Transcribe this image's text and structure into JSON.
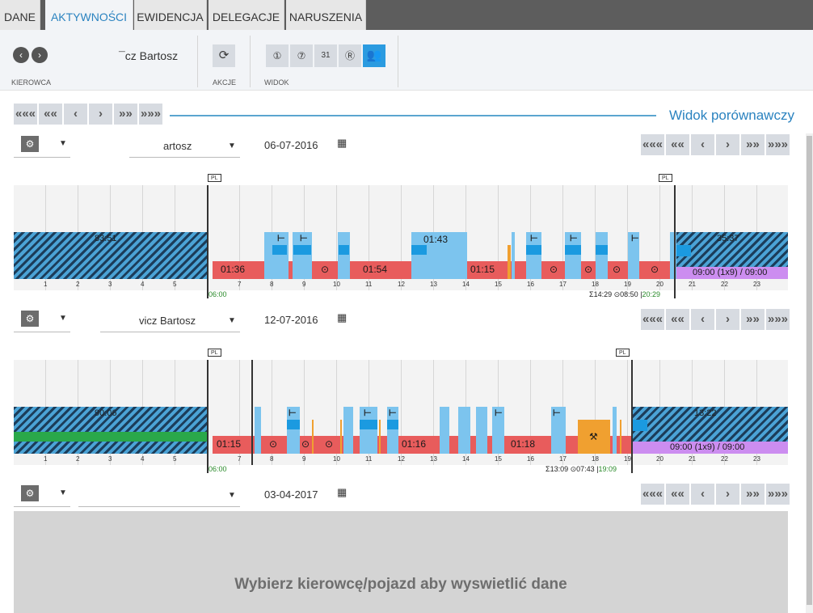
{
  "tabs": [
    "DANE",
    "AKTYWNOŚCI",
    "EWIDENCJA",
    "DELEGACJE",
    "NARUSZENIA"
  ],
  "ribbon": {
    "driver_name": "¯cz Bartosz",
    "group_labels": [
      "KIEROWCA",
      "AKCJE",
      "WIDOK"
    ],
    "prev_icon": "chevron-left-icon",
    "next_icon": "chevron-right-icon",
    "refresh_icon": "refresh-icon",
    "view_buttons": [
      "zoom-1-icon",
      "zoom-7-icon",
      "zoom-31-icon",
      "zoom-r-icon",
      "compare-users-icon"
    ]
  },
  "nav": {
    "buttons": [
      "«««",
      "««",
      "‹",
      "›",
      "»»",
      "»»»"
    ],
    "view_title": "Widok porównawczy"
  },
  "hours": [
    "1",
    "2",
    "3",
    "4",
    "5",
    "6",
    "7",
    "8",
    "9",
    "10",
    "11",
    "12",
    "13",
    "14",
    "15",
    "16",
    "17",
    "18",
    "19",
    "20",
    "21",
    "22",
    "23"
  ],
  "rows": [
    {
      "driver": "artosz",
      "date": "06-07-2016",
      "rest_left": "83:51",
      "rest_right": "35:37",
      "flag_start": "PL",
      "flag_end": "PL",
      "drive_labels": [
        "01:36",
        "01:54",
        "01:15"
      ],
      "rest_label": "01:43",
      "shift_label": "09:00 (1x9) / 09:00",
      "start_time": "06:00",
      "summary_sum": "14:29",
      "summary_drive": "08:50",
      "end_time": "20:29"
    },
    {
      "driver": "vicz Bartosz",
      "date": "12-07-2016",
      "rest_left": "90:06",
      "rest_right": "13:22",
      "flag_start": "PL",
      "flag_end": "PL",
      "drive_labels": [
        "01:15",
        "01:16",
        "01:18"
      ],
      "shift_label": "09:00 (1x9) / 09:00",
      "start_time": "06:00",
      "summary_sum": "13:09",
      "summary_drive": "07:43",
      "end_time": "19:09"
    },
    {
      "driver": "",
      "date": "03-04-2017",
      "empty_message": "Wybierz kierowcę/pojazd aby wyswietlić dane"
    }
  ],
  "colors": {
    "accent": "#2b83c0",
    "drive": "#e85c5c",
    "rest": "#7cc4ee",
    "work": "#f0a030",
    "shift": "#cc8df0"
  }
}
